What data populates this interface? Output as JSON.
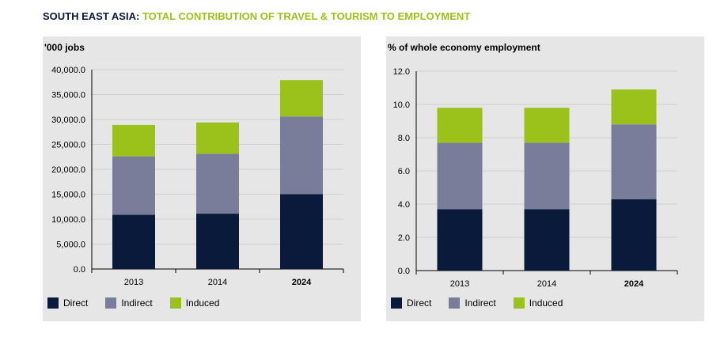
{
  "heading": {
    "region": "SOUTH EAST ASIA:",
    "topic": "TOTAL CONTRIBUTION OF TRAVEL & TOURISM TO EMPLOYMENT"
  },
  "colors": {
    "direct": "#0a1a3a",
    "indirect": "#7a7d9a",
    "induced": "#9ac21a",
    "title_region": "#0a1a3a",
    "title_topic": "#9ac21a",
    "panel_bg": "#e6e6e6"
  },
  "legend": [
    "Direct",
    "Indirect",
    "Induced"
  ],
  "chart_data": [
    {
      "type": "bar",
      "stacked": true,
      "unit_label": "'000 jobs",
      "categories": [
        "2013",
        "2014",
        "2024"
      ],
      "emphasized_category": "2024",
      "ylim": [
        0,
        40000
      ],
      "yticks": [
        "0.0",
        "5,000.0",
        "10,000.0",
        "15,000.0",
        "20,000.0",
        "25,000.0",
        "30,000.0",
        "35,000.0",
        "40,000.0"
      ],
      "grid": true,
      "legend_position": "bottom",
      "series": [
        {
          "name": "Direct",
          "values": [
            10900,
            11100,
            15000
          ]
        },
        {
          "name": "Indirect",
          "values": [
            11700,
            12000,
            15600
          ]
        },
        {
          "name": "Induced",
          "values": [
            6300,
            6300,
            7300
          ]
        }
      ]
    },
    {
      "type": "bar",
      "stacked": true,
      "unit_label": "% of whole economy employment",
      "categories": [
        "2013",
        "2014",
        "2024"
      ],
      "emphasized_category": "2024",
      "ylim": [
        0,
        12
      ],
      "yticks": [
        "0.0",
        "2.0",
        "4.0",
        "6.0",
        "8.0",
        "10.0",
        "12.0"
      ],
      "grid": true,
      "legend_position": "bottom",
      "series": [
        {
          "name": "Direct",
          "values": [
            3.7,
            3.7,
            4.3
          ]
        },
        {
          "name": "Indirect",
          "values": [
            4.0,
            4.0,
            4.5
          ]
        },
        {
          "name": "Induced",
          "values": [
            2.1,
            2.1,
            2.1
          ]
        }
      ]
    }
  ]
}
